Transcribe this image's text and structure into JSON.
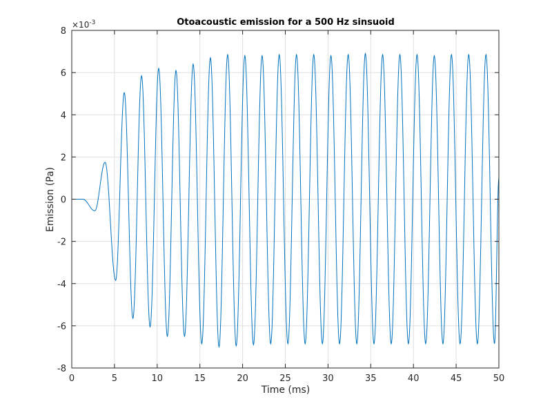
{
  "chart_data": {
    "type": "line",
    "title": "Otoacoustic emission for a 500 Hz sinsuoid",
    "xlabel": "Time (ms)",
    "ylabel": "Emission (Pa)",
    "y_exponent_label": "×10",
    "y_exponent_power": "-3",
    "xlim": [
      0,
      50
    ],
    "ylim": [
      -8,
      8
    ],
    "xticks": [
      "0",
      "5",
      "10",
      "15",
      "20",
      "25",
      "30",
      "35",
      "40",
      "45",
      "50"
    ],
    "yticks": [
      "-8",
      "-6",
      "-4",
      "-2",
      "0",
      "2",
      "4",
      "6",
      "8"
    ],
    "grid": true,
    "line_color": "#0072BD",
    "series": [
      {
        "name": "Emission",
        "extrema_t_ms": [
          0,
          1.3,
          2.7,
          3.9,
          5.14,
          6.15,
          7.16,
          8.17,
          9.17,
          10.18,
          11.19,
          12.2,
          13.2,
          14.21,
          15.22,
          16.23,
          17.24,
          18.25,
          19.25,
          20.26,
          21.27,
          22.28,
          23.29,
          24.29,
          25.3,
          26.31,
          27.32,
          28.33,
          29.34,
          30.34,
          31.35,
          32.36,
          33.37,
          34.37,
          35.38,
          36.39,
          37.4,
          38.41,
          39.41,
          40.42,
          41.43,
          42.44,
          43.45,
          44.45,
          45.46,
          46.47,
          47.48,
          48.49,
          49.49,
          50
        ],
        "extrema_value_e3": [
          0,
          0,
          -0.55,
          1.75,
          -3.85,
          5.05,
          -5.65,
          5.85,
          -6.05,
          6.2,
          -6.5,
          6.1,
          -6.5,
          6.4,
          -6.85,
          6.7,
          -7.0,
          6.85,
          -6.95,
          6.8,
          -6.9,
          6.8,
          -6.85,
          6.85,
          -6.85,
          6.85,
          -6.85,
          6.85,
          -6.85,
          6.8,
          -6.85,
          6.85,
          -6.85,
          6.9,
          -6.85,
          6.85,
          -6.85,
          6.85,
          -6.85,
          6.85,
          -6.85,
          6.8,
          -6.85,
          6.85,
          -6.85,
          6.85,
          -6.85,
          6.85,
          -6.85,
          1.0
        ]
      }
    ]
  }
}
